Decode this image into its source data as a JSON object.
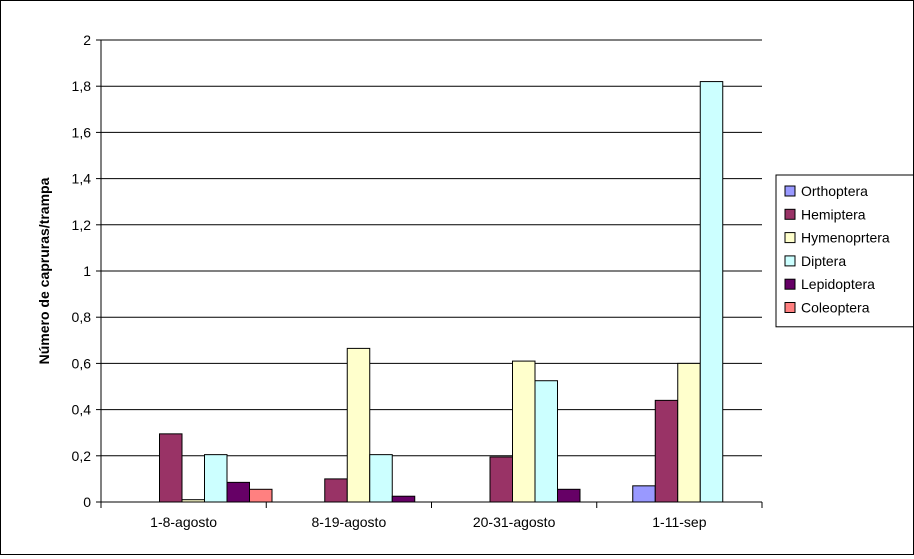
{
  "chart_data": {
    "type": "bar",
    "title": "",
    "xlabel": "",
    "ylabel": "Número de capruras/trampa",
    "ylim": [
      0,
      2
    ],
    "y_ticks": [
      "0",
      "0,2",
      "0,4",
      "0,6",
      "0,8",
      "1",
      "1,2",
      "1,4",
      "1,6",
      "1,8",
      "2"
    ],
    "y_tick_step": 0.2,
    "grid": true,
    "legend_position": "right",
    "categories": [
      "1-8-agosto",
      "8-19-agosto",
      "20-31-agosto",
      "1-11-sep"
    ],
    "series": [
      {
        "name": "Orthoptera",
        "color": "#9999FF",
        "values": [
          0,
          0,
          0,
          0.07
        ]
      },
      {
        "name": "Hemiptera",
        "color": "#993366",
        "values": [
          0.295,
          0.1,
          0.195,
          0.44
        ]
      },
      {
        "name": "Hymenoprtera",
        "color": "#FFFFCC",
        "values": [
          0.01,
          0.665,
          0.61,
          0.6
        ]
      },
      {
        "name": "Diptera",
        "color": "#CCFFFF",
        "values": [
          0.205,
          0.205,
          0.525,
          1.82
        ]
      },
      {
        "name": "Lepidoptera",
        "color": "#660066",
        "values": [
          0.085,
          0.025,
          0.055,
          0
        ]
      },
      {
        "name": "Coleoptera",
        "color": "#FF8080",
        "values": [
          0.055,
          0,
          0,
          0
        ]
      }
    ]
  }
}
